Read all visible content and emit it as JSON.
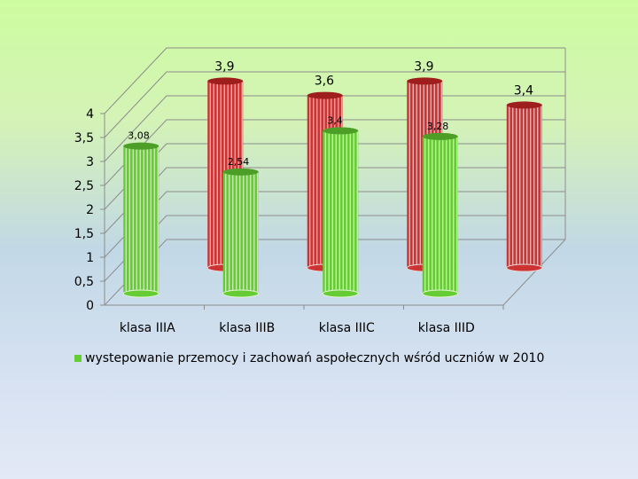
{
  "chart_data": {
    "type": "bar",
    "categories": [
      "klasa IIIA",
      "klasa IIIB",
      "klasa IIIC",
      "klasa IIID"
    ],
    "series": [
      {
        "name": "wystepowanie przemocy i zachowań aspołecznych wśród uczniów w 2010",
        "color": "#66cc33",
        "values": [
          3.08,
          2.54,
          3.4,
          3.28
        ],
        "labels": [
          "3,08",
          "2,54",
          "3,4",
          "3,28"
        ]
      },
      {
        "color": "#cc3333",
        "values": [
          3.9,
          3.6,
          3.9,
          3.4
        ],
        "labels": [
          "3,9",
          "3,6",
          "3,9",
          "3,4"
        ]
      }
    ],
    "y_ticks": [
      "0",
      "0,5",
      "1",
      "1,5",
      "2",
      "2,5",
      "3",
      "3,5",
      "4"
    ],
    "ylim": [
      0,
      4
    ],
    "grid": true,
    "legend_position": "bottom"
  }
}
